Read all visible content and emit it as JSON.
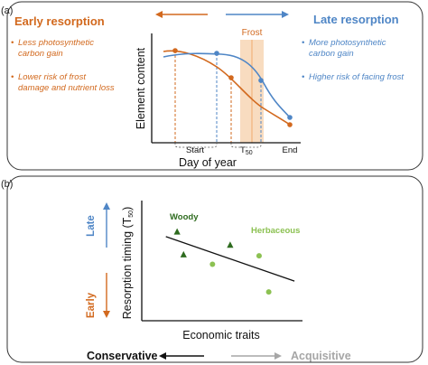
{
  "colors": {
    "early": "#d2691e",
    "late": "#4f86c6",
    "woody": "#2e6b1f",
    "herbaceous": "#8cc152",
    "frost_band": "#f8dcc0",
    "frost_line": "#f2b27a",
    "acquisitive": "#a6a6a6",
    "text": "#111111"
  },
  "panel_a": {
    "label": "(a)",
    "early_title": "Early resorption",
    "late_title": "Late resorption",
    "early_points": [
      {
        "bullet": "•",
        "line1": "Less photosynthetic",
        "line2": "carbon gain"
      },
      {
        "bullet": "•",
        "line1": "Lower risk of  frost",
        "line2": "damage and nutrient loss"
      }
    ],
    "late_points": [
      {
        "bullet": "•",
        "line1": "More photosynthetic",
        "line2": "carbon gain"
      },
      {
        "bullet": "•",
        "line1": "Higher risk of facing frost",
        "line2": ""
      }
    ],
    "frost_label": "Frost",
    "y_axis_label": "Element content",
    "x_axis_label": "Day of year",
    "tick_start": "Start",
    "tick_t50_main": "T",
    "tick_t50_sub": "50",
    "tick_end": "End"
  },
  "panel_b": {
    "label": "(b)",
    "late_label": "Late",
    "early_label": "Early",
    "y_axis_label_main": "Resorption timing (T",
    "y_axis_label_sub": "50",
    "y_axis_label_close": ")",
    "x_axis_label": "Economic traits",
    "woody_label": "Woody",
    "herbaceous_label": "Herbaceous",
    "conservative_label": "Conservative",
    "acquisitive_label": "Acquisitive"
  },
  "chart_data": {
    "type": "scatter",
    "series": [
      {
        "name": "Woody",
        "marker": "triangle",
        "points": [
          [
            0.22,
            0.74
          ],
          [
            0.26,
            0.55
          ],
          [
            0.55,
            0.63
          ]
        ]
      },
      {
        "name": "Herbaceous",
        "marker": "circle",
        "points": [
          [
            0.44,
            0.47
          ],
          [
            0.73,
            0.54
          ],
          [
            0.79,
            0.24
          ]
        ]
      }
    ],
    "trend_line": [
      [
        0.15,
        0.7
      ],
      [
        0.95,
        0.33
      ]
    ],
    "xlabel": "Economic traits",
    "ylabel": "Resorption timing (T50)",
    "xlim": [
      0,
      1
    ],
    "ylim": [
      0,
      1
    ]
  }
}
